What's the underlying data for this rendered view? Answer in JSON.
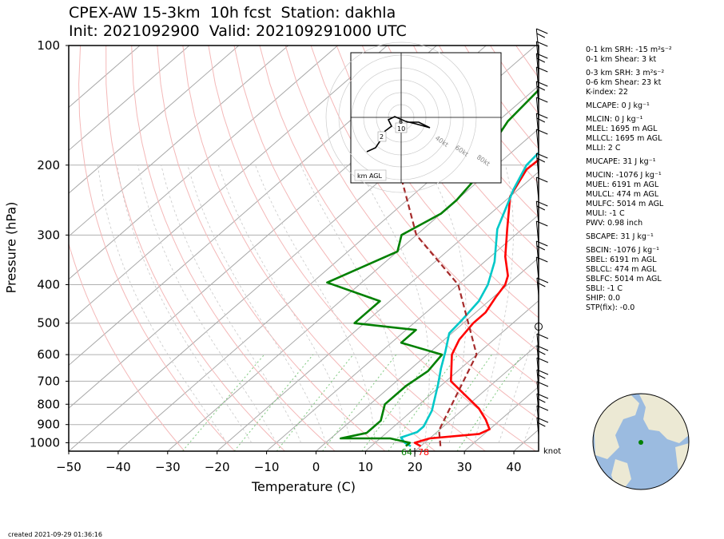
{
  "title": {
    "line1": "CPEX-AW 15-3km  10h fcst  Station: dakhla",
    "line2": "Init: 2021092900  Valid: 202109291000 UTC"
  },
  "chart_data": {
    "type": "line",
    "xlabel": "Temperature (C)",
    "ylabel": "Pressure (hPa)",
    "xlim": [
      -50,
      45
    ],
    "ylim": [
      1050,
      100
    ],
    "y_scale": "log",
    "x_ticks": [
      "−50",
      "−40",
      "−30",
      "−20",
      "−10",
      "0",
      "10",
      "20",
      "30",
      "40"
    ],
    "y_ticks": [
      "100",
      "200",
      "300",
      "400",
      "500",
      "600",
      "700",
      "800",
      "900",
      "1000"
    ],
    "grid": true,
    "surface_labels": {
      "dewpoint": "64",
      "temperature": "78"
    },
    "series": [
      {
        "key": "temperature",
        "color": "#ff0000",
        "points": [
          [
            20,
            1020
          ],
          [
            18,
            1000
          ],
          [
            20,
            975
          ],
          [
            29,
            950
          ],
          [
            30,
            925
          ],
          [
            27,
            875
          ],
          [
            23,
            820
          ],
          [
            11,
            700
          ],
          [
            5,
            600
          ],
          [
            3,
            550
          ],
          [
            2,
            500
          ],
          [
            2,
            470
          ],
          [
            0.5,
            430
          ],
          [
            -0.5,
            400
          ],
          [
            -2,
            380
          ],
          [
            -7,
            340
          ],
          [
            -13,
            290
          ],
          [
            -20,
            240
          ],
          [
            -23,
            205
          ],
          [
            -22.5,
            180
          ],
          [
            -23,
            160
          ],
          [
            -23,
            135
          ],
          [
            -25,
            117
          ],
          [
            -26,
            100
          ]
        ]
      },
      {
        "key": "dewpoint",
        "color": "#00c8c8",
        "points": [
          [
            18,
            1020
          ],
          [
            16,
            1000
          ],
          [
            14,
            970
          ],
          [
            16,
            940
          ],
          [
            16,
            910
          ],
          [
            14,
            830
          ],
          [
            9,
            710
          ],
          [
            6,
            650
          ],
          [
            3,
            590
          ],
          [
            -0.5,
            530
          ],
          [
            -1,
            490
          ],
          [
            -2,
            440
          ],
          [
            -4,
            400
          ],
          [
            -8,
            350
          ],
          [
            -15,
            290
          ],
          [
            -21,
            230
          ],
          [
            -24,
            200
          ],
          [
            -25,
            170
          ],
          [
            -25,
            150
          ],
          [
            -25,
            120
          ],
          [
            -26,
            110
          ],
          [
            -25,
            100
          ]
        ]
      },
      {
        "key": "wet-bulb",
        "color": "#008000",
        "points": [
          [
            17,
            1020
          ],
          [
            17,
            1000
          ],
          [
            12,
            975
          ],
          [
            2,
            975
          ],
          [
            6,
            945
          ],
          [
            6,
            925
          ],
          [
            6,
            880
          ],
          [
            3,
            800
          ],
          [
            3,
            720
          ],
          [
            4,
            660
          ],
          [
            3,
            600
          ],
          [
            -8,
            560
          ],
          [
            -8,
            520
          ],
          [
            -22,
            500
          ],
          [
            -22,
            470
          ],
          [
            -22,
            440
          ],
          [
            -37,
            395
          ],
          [
            -30,
            330
          ],
          [
            -33,
            300
          ],
          [
            -30,
            265
          ],
          [
            -30,
            245
          ],
          [
            -31,
            220
          ],
          [
            -31,
            200
          ],
          [
            -35,
            185
          ],
          [
            -38,
            155
          ],
          [
            -39,
            130
          ],
          [
            -37,
            116
          ],
          [
            -35,
            100
          ]
        ]
      },
      {
        "key": "parcel",
        "color": "#a52a2a",
        "dash": true,
        "points": [
          [
            24,
            1020
          ],
          [
            20,
            930
          ],
          [
            10,
            600
          ],
          [
            -10,
            400
          ],
          [
            -30,
            300
          ],
          [
            -50,
            200
          ],
          [
            -66,
            130
          ]
        ]
      }
    ]
  },
  "hodograph": {
    "rings": [
      "40kt",
      "60kt",
      "80kt"
    ],
    "height_labels": [
      "6",
      "10",
      "2"
    ],
    "footer": "km AGL"
  },
  "wind_axis_label": "knot",
  "stats": [
    "0-1 km SRH: -15 m²s⁻²",
    "0-1 km Shear: 3 kt",
    "0-3 km SRH: 3 m²s⁻²",
    "0-6 km Shear: 23 kt",
    "K-index: 22",
    "MLCAPE: 0 J kg⁻¹",
    "MLCIN: 0 J kg⁻¹",
    "MLEL: 1695 m AGL",
    "MLLCL: 1695 m AGL",
    "MLLI: 2 C",
    "MUCAPE: 31 J kg⁻¹",
    "MUCIN: -1076 J kg⁻¹",
    "MUEL: 6191 m AGL",
    "MULCL: 474 m AGL",
    "MULFC: 5014 m AGL",
    "MULI: -1 C",
    "PWV: 0.98 inch",
    "SBCAPE: 31 J kg⁻¹",
    "SBCIN: -1076 J kg⁻¹",
    "SBEL: 6191 m AGL",
    "SBLCL: 474 m AGL",
    "SBLFC: 5014 m AGL",
    "SBLI: -1 C",
    "SHIP: 0.0",
    "STP(fix): -0.0"
  ],
  "created": "created 2021-09-29 01:36:16",
  "colors": {
    "isobar": "#b0b0b0",
    "isotherm": "#a8a8a8",
    "dry_adiabat": "#f4b8b8",
    "moist_adiabat": "#c8c8c8",
    "mixing_ratio": "#7fc97f",
    "ocean": "#9bbbe0",
    "land": "#ece9d4"
  }
}
